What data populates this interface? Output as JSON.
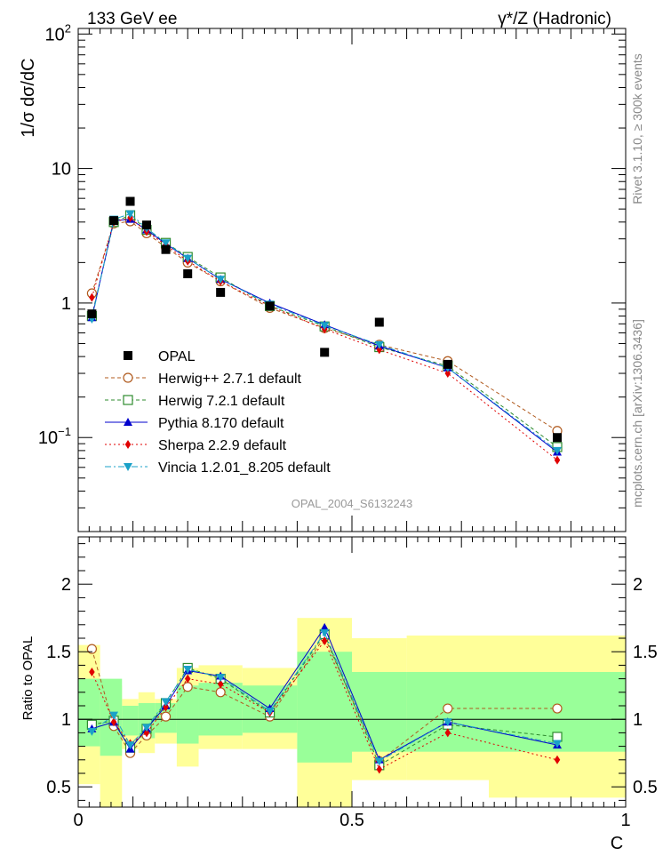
{
  "chart_data": {
    "type": "line",
    "header_left": "133 GeV ee",
    "header_right": "γ*/Z (Hadronic)",
    "ylabel_main": "1/σ dσ/dC",
    "ylabel_ratio": "Ratio to OPAL",
    "xlabel": "C",
    "side_text_upper": "Rivet 3.1.10, ≥ 300k events",
    "side_text_lower": "mcplots.cern.ch [arXiv:1306.3436]",
    "watermark": "OPAL_2004_S6132243",
    "main_ticks": [
      {
        "value": 100,
        "base": "10",
        "exp": "2"
      },
      {
        "value": 10,
        "base": "10",
        "exp": ""
      },
      {
        "value": 1,
        "base": "1",
        "exp": ""
      },
      {
        "value": 0.1,
        "base": "10",
        "exp": "−1"
      }
    ],
    "ratio_ticks": [
      "0.5",
      "1",
      "1.5",
      "2"
    ],
    "ratio_tick_values": [
      0.5,
      1,
      1.5,
      2
    ],
    "x_ticks": [
      "0",
      "0.5",
      "1"
    ],
    "x_tick_values": [
      0,
      0.5,
      1
    ],
    "ylim_main": [
      0.02,
      110
    ],
    "ylim_ratio": [
      0.35,
      2.35
    ],
    "xlim": [
      0,
      1
    ],
    "x": [
      0.025,
      0.065,
      0.095,
      0.125,
      0.16,
      0.2,
      0.26,
      0.35,
      0.45,
      0.55,
      0.675,
      0.875
    ],
    "bin_edges": [
      0.0,
      0.04,
      0.08,
      0.11,
      0.14,
      0.18,
      0.22,
      0.3,
      0.4,
      0.5,
      0.6,
      0.75,
      1.0
    ],
    "ratio_band_yellow": [
      [
        0.52,
        1.55
      ],
      [
        0.3,
        1.25
      ],
      [
        0.78,
        1.15
      ],
      [
        0.75,
        1.2
      ],
      [
        0.82,
        1.15
      ],
      [
        0.65,
        1.38
      ],
      [
        0.78,
        1.4
      ],
      [
        0.78,
        1.38
      ],
      [
        0.3,
        1.75
      ],
      [
        0.55,
        1.6
      ],
      [
        0.55,
        1.62
      ],
      [
        0.42,
        1.62
      ]
    ],
    "ratio_band_green": [
      [
        0.8,
        1.3
      ],
      [
        0.73,
        1.3
      ],
      [
        0.88,
        1.1
      ],
      [
        0.86,
        1.12
      ],
      [
        0.9,
        1.12
      ],
      [
        0.82,
        1.25
      ],
      [
        0.88,
        1.27
      ],
      [
        0.9,
        1.25
      ],
      [
        0.68,
        1.5
      ],
      [
        0.76,
        1.35
      ],
      [
        0.76,
        1.35
      ],
      [
        0.76,
        1.35
      ]
    ],
    "data": {
      "name": "OPAL",
      "values": [
        0.83,
        4.1,
        5.7,
        3.8,
        2.5,
        1.65,
        1.2,
        0.95,
        0.43,
        0.72,
        0.35,
        0.1
      ]
    },
    "series": [
      {
        "name": "Herwig++ 2.7.1 default",
        "color": "#b05a1e",
        "marker": "open-circle",
        "dash": "4,3",
        "values": [
          1.18,
          3.9,
          4.05,
          3.3,
          2.6,
          2.0,
          1.45,
          0.92,
          0.65,
          0.49,
          0.37,
          0.112
        ],
        "ratio": [
          1.52,
          0.95,
          0.75,
          0.88,
          1.02,
          1.24,
          1.2,
          1.02,
          1.61,
          0.69,
          1.08,
          1.08
        ]
      },
      {
        "name": "Herwig 7.2.1 default",
        "color": "#2e8b2e",
        "marker": "open-square",
        "dash": "4,3",
        "values": [
          0.8,
          4.0,
          4.5,
          3.5,
          2.8,
          2.2,
          1.55,
          0.95,
          0.67,
          0.47,
          0.34,
          0.085
        ],
        "ratio": [
          0.96,
          0.99,
          0.79,
          0.93,
          1.12,
          1.38,
          1.3,
          1.05,
          1.63,
          0.66,
          0.96,
          0.87
        ]
      },
      {
        "name": "Pythia 8.170 default",
        "color": "#0000cc",
        "marker": "filled-triangle-up",
        "dash": "",
        "values": [
          0.78,
          4.1,
          4.2,
          3.5,
          2.75,
          2.15,
          1.5,
          1.0,
          0.69,
          0.48,
          0.33,
          0.078
        ],
        "ratio": [
          0.93,
          0.98,
          0.78,
          0.93,
          1.1,
          1.36,
          1.32,
          1.08,
          1.68,
          0.7,
          0.98,
          0.81
        ]
      },
      {
        "name": "Sherpa 2.2.9 default",
        "color": "#e00000",
        "marker": "filled-diamond",
        "dash": "2,3",
        "values": [
          1.1,
          4.0,
          4.3,
          3.4,
          2.7,
          2.05,
          1.45,
          0.95,
          0.64,
          0.45,
          0.3,
          0.068
        ],
        "ratio": [
          1.35,
          0.98,
          0.82,
          0.9,
          1.09,
          1.3,
          1.26,
          1.05,
          1.58,
          0.63,
          0.9,
          0.7
        ]
      },
      {
        "name": "Vincia 1.2.01_8.205 default",
        "color": "#1aa1c8",
        "marker": "filled-triangle-down",
        "dash": "7,3,2,3",
        "values": [
          0.76,
          4.2,
          4.6,
          3.6,
          2.8,
          2.15,
          1.5,
          0.98,
          0.68,
          0.49,
          0.33,
          0.08
        ],
        "ratio": [
          0.91,
          1.03,
          0.81,
          0.94,
          1.13,
          1.37,
          1.31,
          1.06,
          1.64,
          0.69,
          0.98,
          0.82
        ]
      }
    ]
  }
}
